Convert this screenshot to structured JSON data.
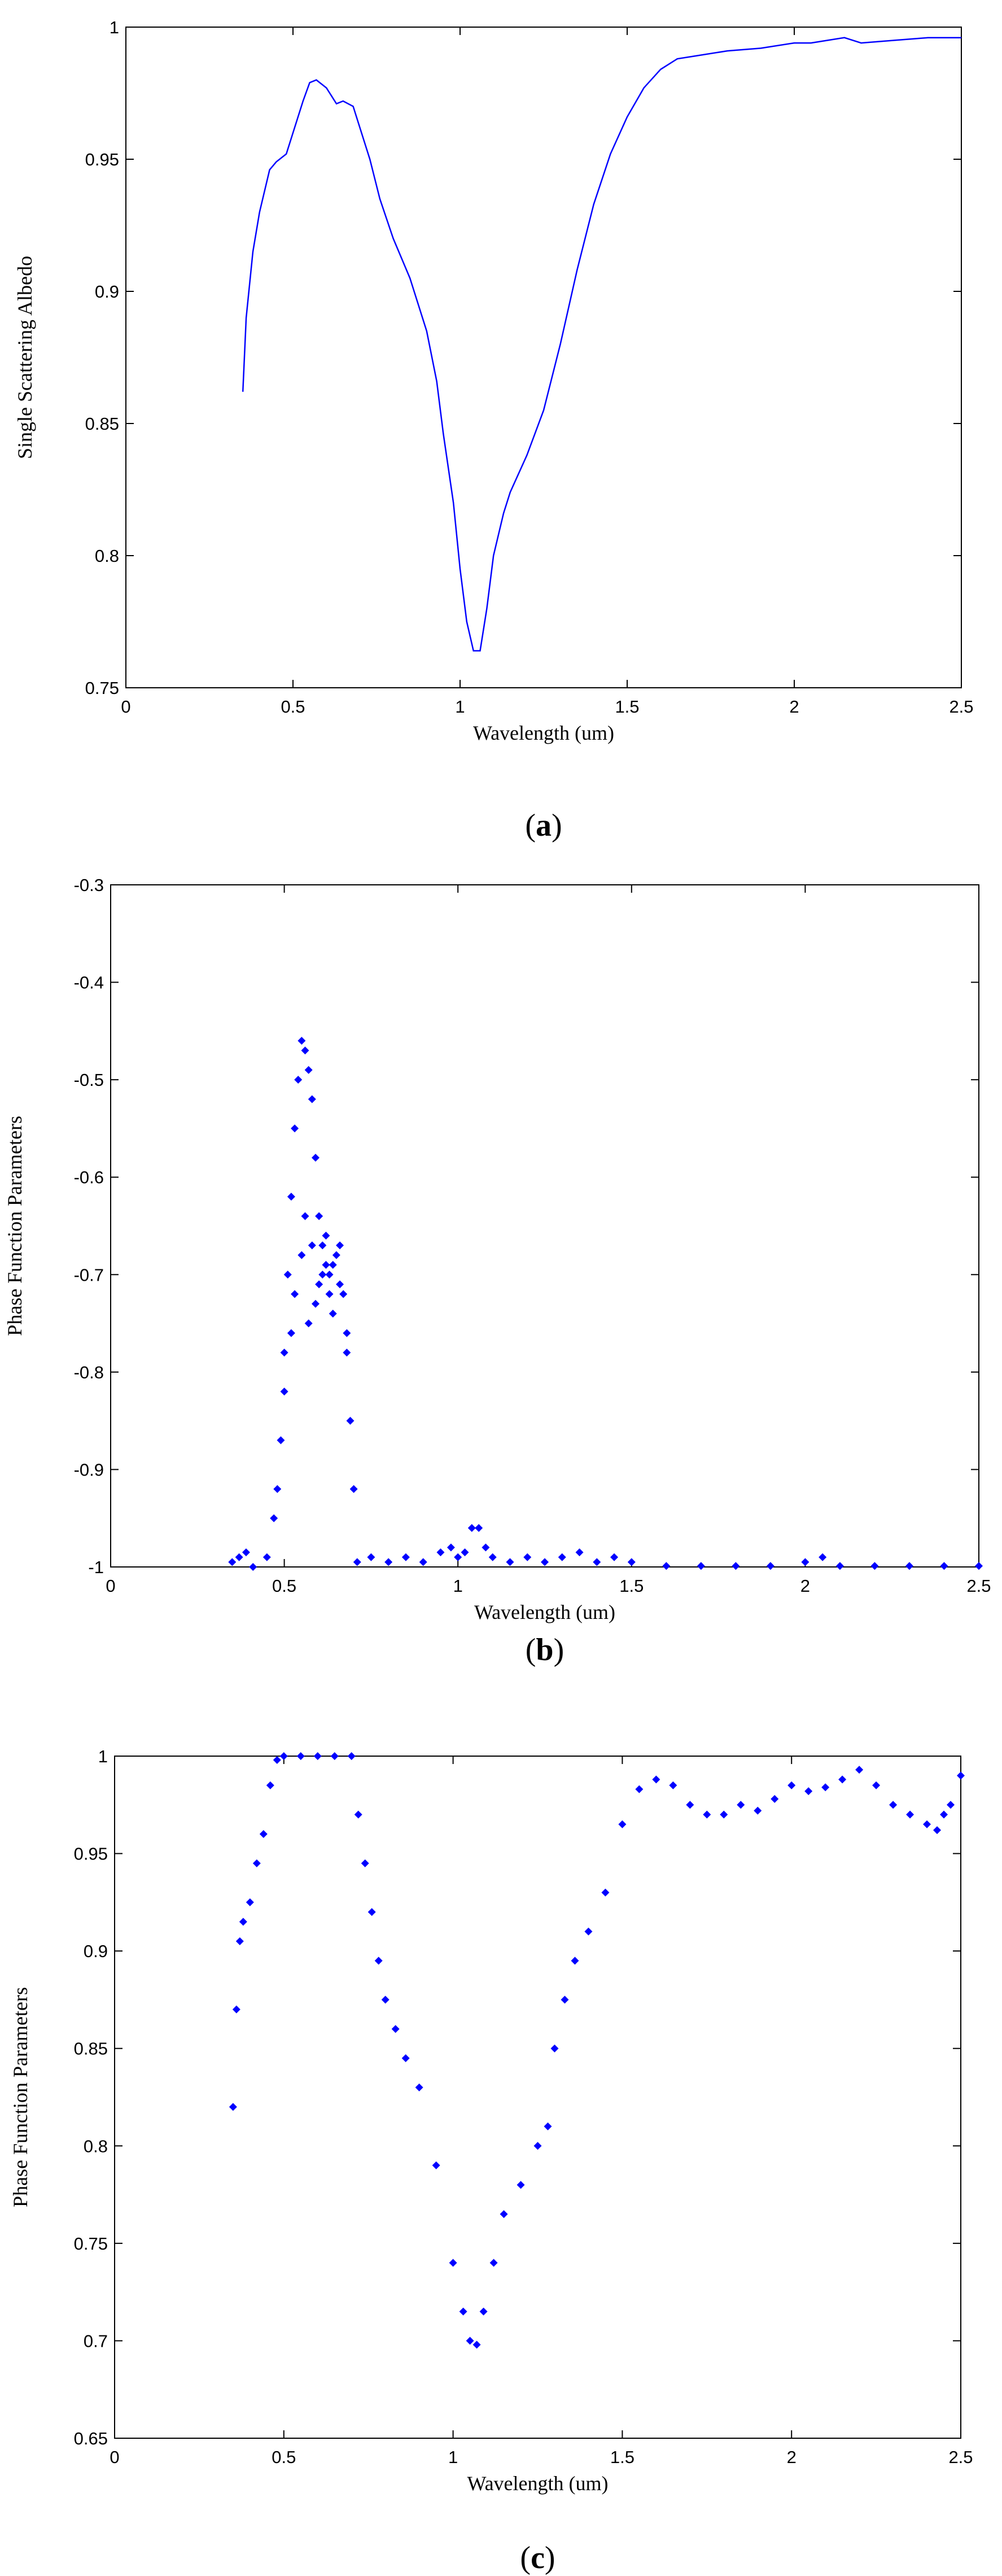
{
  "chart_data": [
    {
      "type": "line",
      "caption_letter": "a",
      "xlabel": "Wavelength (um)",
      "ylabel": "Single Scattering Albedo",
      "xlim": [
        0,
        2.5
      ],
      "ylim": [
        0.75,
        1
      ],
      "xticks": [
        "0",
        "0.5",
        "1",
        "1.5",
        "2",
        "2.5"
      ],
      "yticks": [
        "0.75",
        "0.8",
        "0.85",
        "0.9",
        "0.95",
        "1"
      ],
      "grid": false,
      "color": "#0000ff",
      "series": [
        {
          "x": [
            0.35,
            0.36,
            0.38,
            0.4,
            0.43,
            0.45,
            0.48,
            0.5,
            0.53,
            0.55,
            0.57,
            0.6,
            0.63,
            0.65,
            0.68,
            0.7,
            0.73,
            0.76,
            0.8,
            0.85,
            0.9,
            0.93,
            0.95,
            0.98,
            1.0,
            1.02,
            1.04,
            1.06,
            1.08,
            1.1,
            1.13,
            1.15,
            1.2,
            1.25,
            1.3,
            1.35,
            1.4,
            1.45,
            1.5,
            1.55,
            1.6,
            1.65,
            1.7,
            1.8,
            1.9,
            2.0,
            2.05,
            2.1,
            2.15,
            2.2,
            2.3,
            2.4,
            2.5
          ],
          "y": [
            0.862,
            0.89,
            0.915,
            0.93,
            0.946,
            0.949,
            0.952,
            0.96,
            0.972,
            0.979,
            0.98,
            0.977,
            0.971,
            0.972,
            0.97,
            0.962,
            0.95,
            0.935,
            0.92,
            0.905,
            0.885,
            0.866,
            0.846,
            0.82,
            0.795,
            0.775,
            0.764,
            0.764,
            0.78,
            0.8,
            0.816,
            0.824,
            0.838,
            0.855,
            0.88,
            0.908,
            0.933,
            0.952,
            0.966,
            0.977,
            0.984,
            0.988,
            0.989,
            0.991,
            0.992,
            0.994,
            0.994,
            0.995,
            0.996,
            0.994,
            0.995,
            0.996,
            0.996
          ]
        }
      ]
    },
    {
      "type": "scatter",
      "caption_letter": "b",
      "xlabel": "Wavelength (um)",
      "ylabel": "Phase Function Parameters",
      "xlim": [
        0,
        2.5
      ],
      "ylim": [
        -1,
        -0.3
      ],
      "xticks": [
        "0",
        "0.5",
        "1",
        "1.5",
        "2",
        "2.5"
      ],
      "yticks": [
        "-1",
        "-0.9",
        "-0.8",
        "-0.7",
        "-0.6",
        "-0.5",
        "-0.4",
        "-0.3"
      ],
      "grid": false,
      "color": "#0000ff",
      "series": [
        {
          "x": [
            0.35,
            0.37,
            0.39,
            0.41,
            0.45,
            0.47,
            0.48,
            0.49,
            0.5,
            0.51,
            0.52,
            0.53,
            0.54,
            0.55,
            0.56,
            0.57,
            0.58,
            0.59,
            0.6,
            0.61,
            0.62,
            0.63,
            0.64,
            0.65,
            0.66,
            0.67,
            0.68,
            0.69,
            0.7,
            0.71,
            0.75,
            0.8,
            0.85,
            0.9,
            0.95,
            0.98,
            1.0,
            1.02,
            1.04,
            1.06,
            1.08,
            1.1,
            1.15,
            1.2,
            1.25,
            1.3,
            1.35,
            1.4,
            1.45,
            1.5,
            1.6,
            1.7,
            1.8,
            1.9,
            2.0,
            2.05,
            2.1,
            2.2,
            2.3,
            2.4,
            2.5,
            0.53,
            0.55,
            0.57,
            0.59,
            0.61,
            0.63,
            0.5,
            0.52,
            0.56,
            0.58,
            0.6,
            0.62,
            0.64,
            0.66,
            0.68
          ],
          "y": [
            -0.995,
            -0.99,
            -0.985,
            -1.0,
            -0.99,
            -0.95,
            -0.92,
            -0.87,
            -0.78,
            -0.7,
            -0.62,
            -0.55,
            -0.5,
            -0.46,
            -0.47,
            -0.49,
            -0.52,
            -0.58,
            -0.64,
            -0.67,
            -0.66,
            -0.7,
            -0.69,
            -0.68,
            -0.67,
            -0.72,
            -0.78,
            -0.85,
            -0.92,
            -0.995,
            -0.99,
            -0.995,
            -0.99,
            -0.995,
            -0.985,
            -0.98,
            -0.99,
            -0.985,
            -0.96,
            -0.96,
            -0.98,
            -0.99,
            -0.995,
            -0.99,
            -0.995,
            -0.99,
            -0.985,
            -0.995,
            -0.99,
            -0.995,
            -0.999,
            -0.999,
            -0.999,
            -0.999,
            -0.995,
            -0.99,
            -0.999,
            -0.999,
            -0.999,
            -0.999,
            -0.999,
            -0.72,
            -0.68,
            -0.75,
            -0.73,
            -0.7,
            -0.72,
            -0.82,
            -0.76,
            -0.64,
            -0.67,
            -0.71,
            -0.69,
            -0.74,
            -0.71,
            -0.76
          ]
        }
      ]
    },
    {
      "type": "scatter",
      "caption_letter": "c",
      "xlabel": "Wavelength (um)",
      "ylabel": "Phase Function Parameters",
      "xlim": [
        0,
        2.5
      ],
      "ylim": [
        0.65,
        1
      ],
      "xticks": [
        "0",
        "0.5",
        "1",
        "1.5",
        "2",
        "2.5"
      ],
      "yticks": [
        "0.65",
        "0.7",
        "0.75",
        "0.8",
        "0.85",
        "0.9",
        "0.95",
        "1"
      ],
      "grid": false,
      "color": "#0000ff",
      "series": [
        {
          "x": [
            0.35,
            0.36,
            0.37,
            0.38,
            0.4,
            0.42,
            0.44,
            0.46,
            0.48,
            0.5,
            0.55,
            0.6,
            0.65,
            0.7,
            0.72,
            0.74,
            0.76,
            0.78,
            0.8,
            0.83,
            0.86,
            0.9,
            0.95,
            1.0,
            1.03,
            1.05,
            1.07,
            1.09,
            1.12,
            1.15,
            1.2,
            1.25,
            1.28,
            1.3,
            1.33,
            1.36,
            1.4,
            1.45,
            1.5,
            1.55,
            1.6,
            1.65,
            1.7,
            1.75,
            1.8,
            1.85,
            1.9,
            1.95,
            2.0,
            2.05,
            2.1,
            2.15,
            2.2,
            2.25,
            2.3,
            2.35,
            2.4,
            2.43,
            2.45,
            2.47,
            2.5
          ],
          "y": [
            0.82,
            0.87,
            0.905,
            0.915,
            0.925,
            0.945,
            0.96,
            0.985,
            0.998,
            1.0,
            1.0,
            1.0,
            1.0,
            1.0,
            0.97,
            0.945,
            0.92,
            0.895,
            0.875,
            0.86,
            0.845,
            0.83,
            0.79,
            0.74,
            0.715,
            0.7,
            0.698,
            0.715,
            0.74,
            0.765,
            0.78,
            0.8,
            0.81,
            0.85,
            0.875,
            0.895,
            0.91,
            0.93,
            0.965,
            0.983,
            0.988,
            0.985,
            0.975,
            0.97,
            0.97,
            0.975,
            0.972,
            0.978,
            0.985,
            0.982,
            0.984,
            0.988,
            0.993,
            0.985,
            0.975,
            0.97,
            0.965,
            0.962,
            0.97,
            0.975,
            0.99
          ]
        }
      ]
    }
  ]
}
